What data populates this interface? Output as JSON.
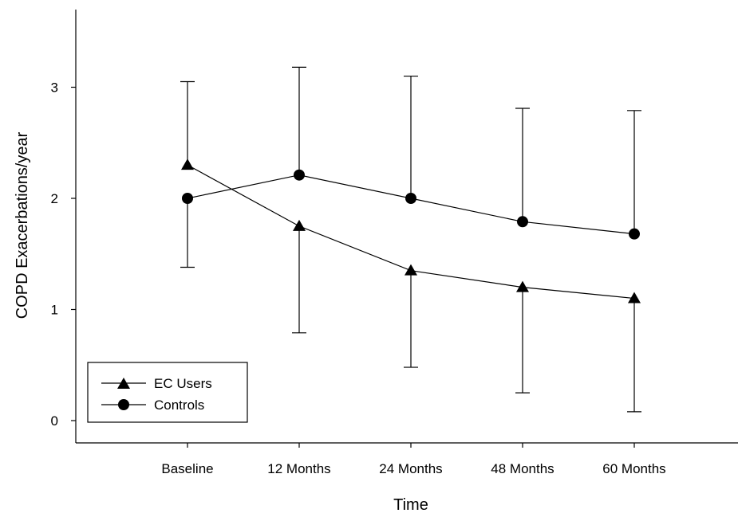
{
  "chart_data": {
    "type": "line",
    "title": "",
    "xlabel": "Time",
    "ylabel": "COPD Exacerbations/year",
    "categories": [
      "Baseline",
      "12 Months",
      "24 Months",
      "48 Months",
      "60 Months"
    ],
    "ylim": [
      -0.1,
      3.7
    ],
    "yticks": [
      0,
      1,
      2,
      3
    ],
    "grid": false,
    "legend_position": "bottom-left",
    "series": [
      {
        "name": "EC Users",
        "marker": "triangle",
        "values": [
          2.3,
          1.75,
          1.35,
          1.2,
          1.1
        ],
        "error_upper": [
          3.05,
          null,
          null,
          null,
          null
        ],
        "error_lower": [
          null,
          0.79,
          0.48,
          0.25,
          0.08
        ]
      },
      {
        "name": "Controls",
        "marker": "circle",
        "values": [
          2.0,
          2.21,
          2.0,
          1.79,
          1.68
        ],
        "error_upper": [
          null,
          3.18,
          3.1,
          2.81,
          2.79
        ],
        "error_lower": [
          1.38,
          null,
          null,
          null,
          null
        ]
      }
    ]
  },
  "colors": {
    "ink": "#000000",
    "background": "#ffffff"
  }
}
